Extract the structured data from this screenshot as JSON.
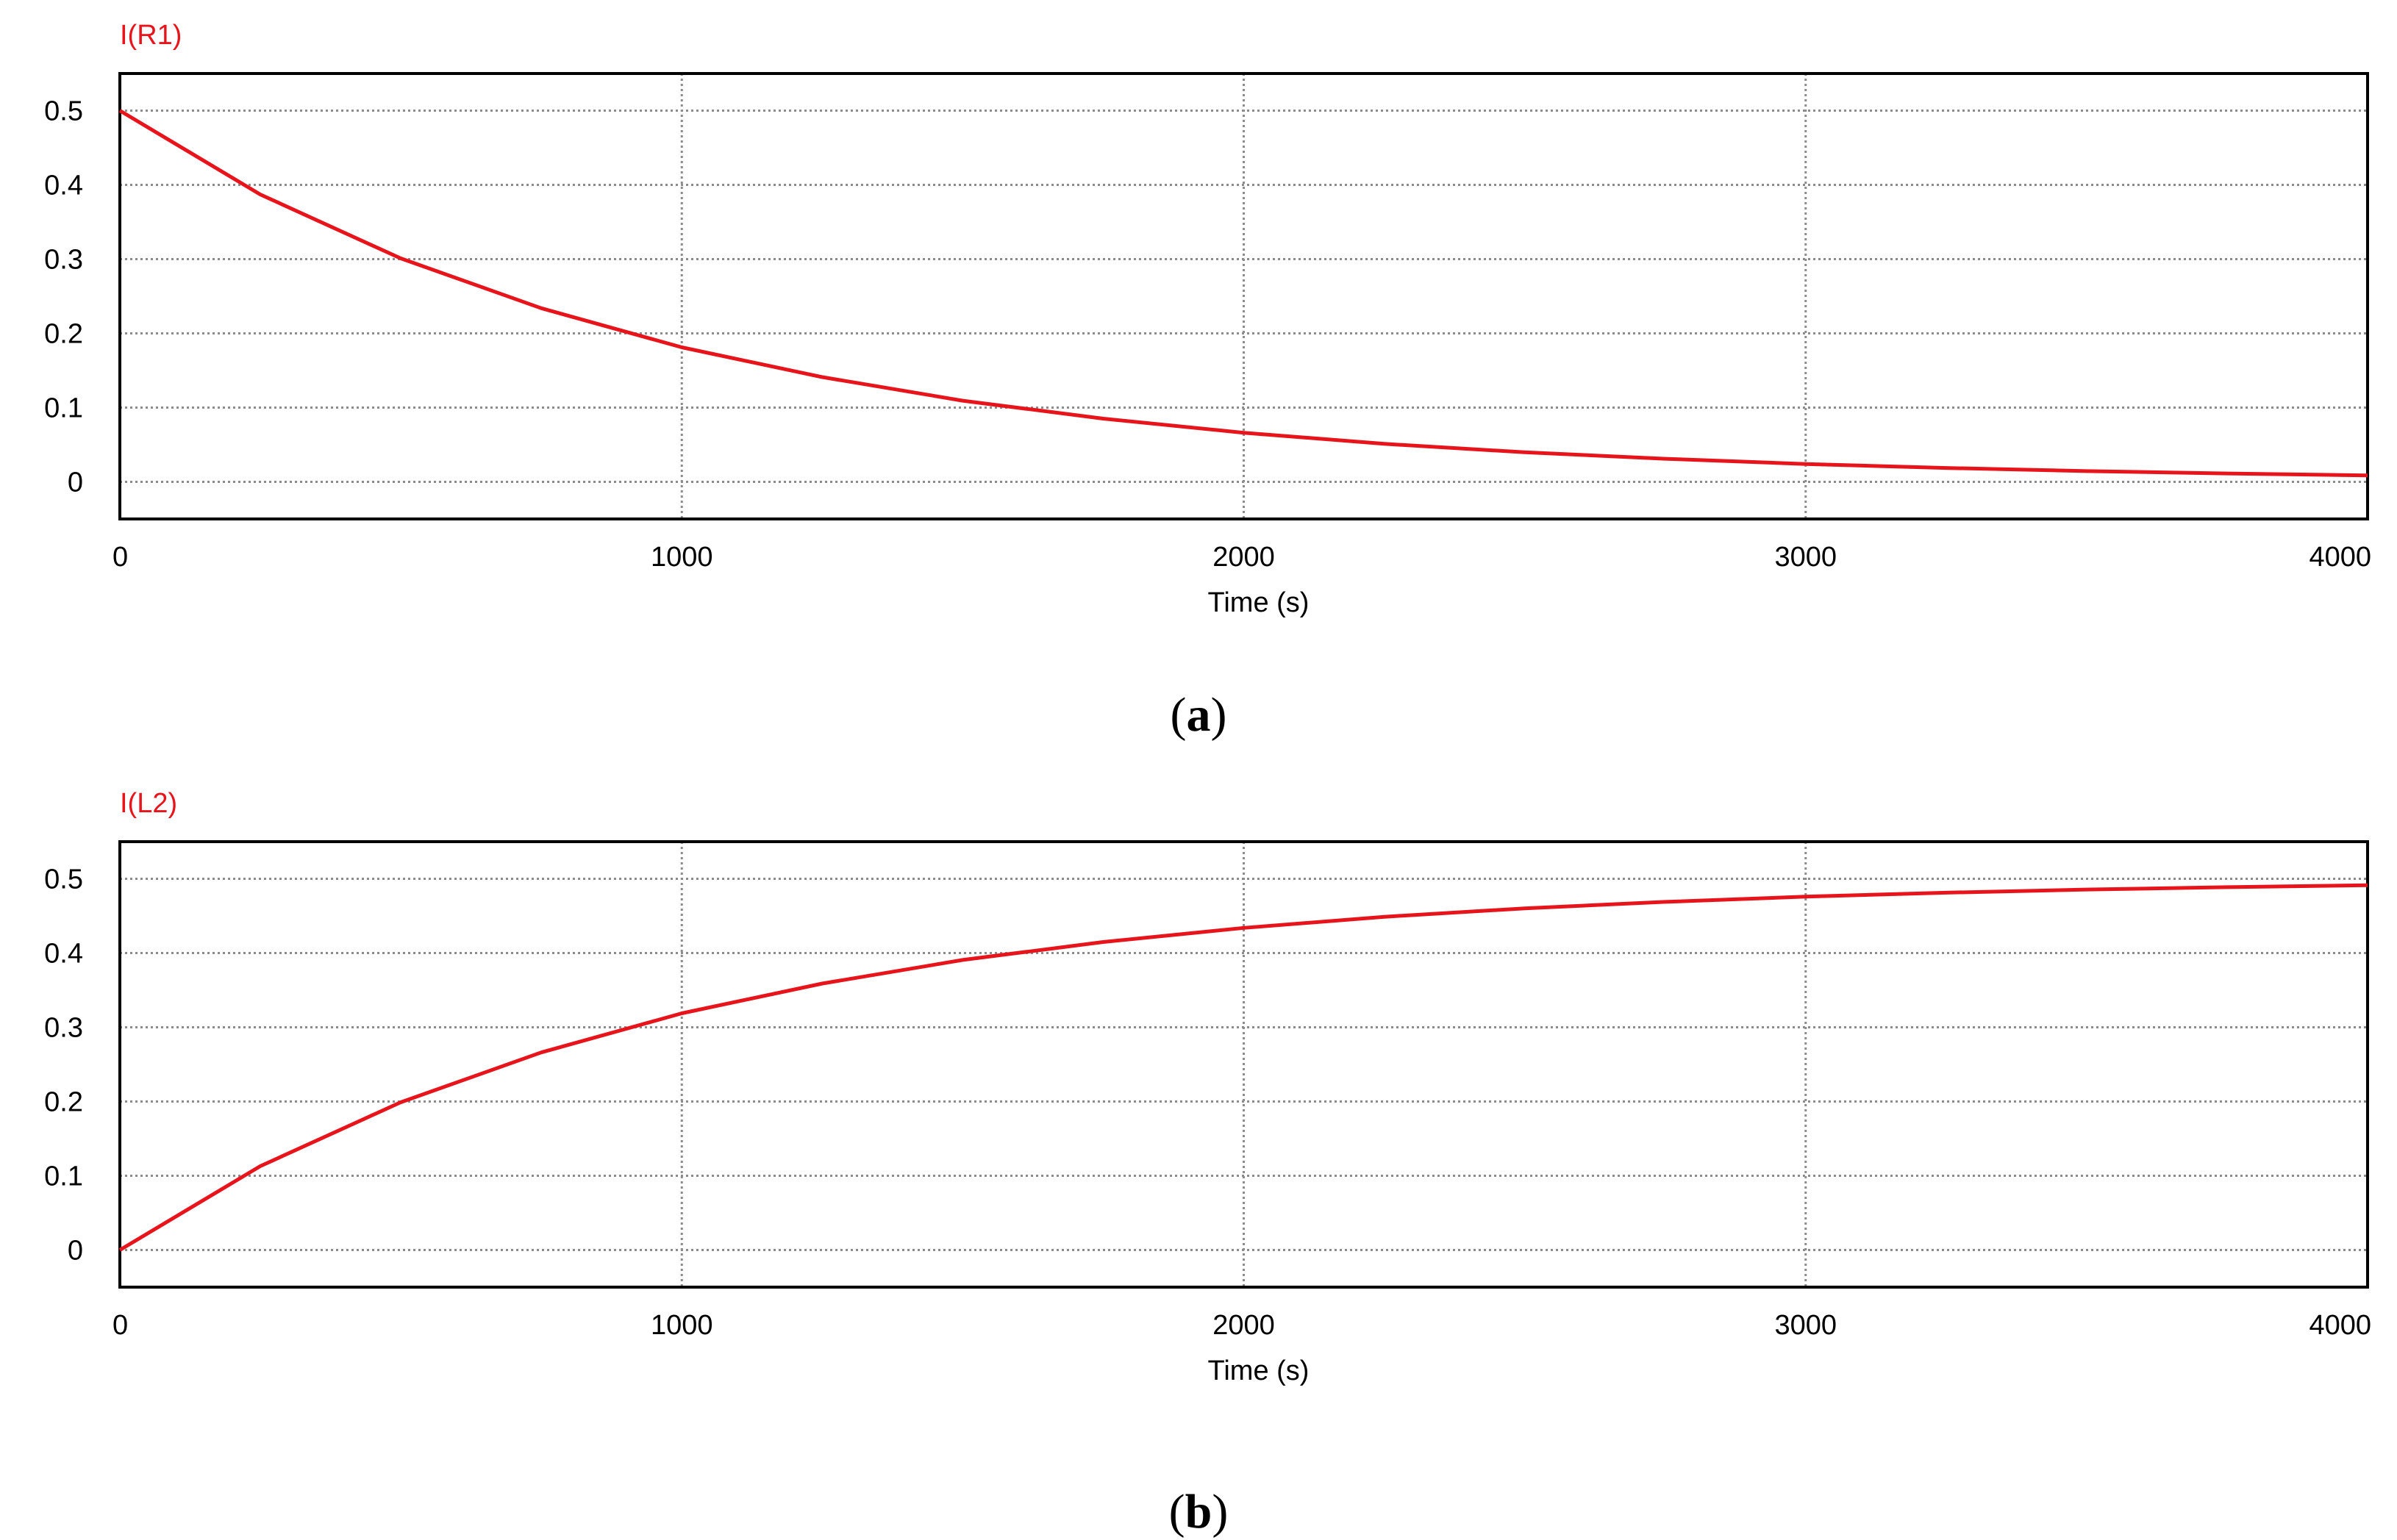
{
  "chart_data": [
    {
      "type": "line",
      "panel_label": "a",
      "series": [
        {
          "name": "I(R1)",
          "color": "#e8141c",
          "x": [
            0,
            250,
            500,
            750,
            1000,
            1250,
            1500,
            1750,
            2000,
            2250,
            2500,
            2750,
            3000,
            3250,
            3500,
            3750,
            4000
          ],
          "y": [
            0.5,
            0.387,
            0.301,
            0.2339,
            0.1812,
            0.1411,
            0.1093,
            0.0851,
            0.0661,
            0.0512,
            0.0398,
            0.0311,
            0.0241,
            0.0187,
            0.0145,
            0.0113,
            0.0087
          ]
        }
      ],
      "xlabel": "Time (s)",
      "xlim": [
        0,
        4000
      ],
      "ylim": [
        -0.05,
        0.55
      ],
      "xticks": [
        "0",
        "1000",
        "2000",
        "3000",
        "4000"
      ],
      "yticks": [
        "0",
        "0.1",
        "0.2",
        "0.3",
        "0.4",
        "0.5"
      ],
      "grid": true
    },
    {
      "type": "line",
      "panel_label": "b",
      "series": [
        {
          "name": "I(L2)",
          "color": "#e8141c",
          "x": [
            0,
            250,
            500,
            750,
            1000,
            1250,
            1500,
            1750,
            2000,
            2250,
            2500,
            2750,
            3000,
            3250,
            3500,
            3750,
            4000
          ],
          "y": [
            0,
            0.113,
            0.199,
            0.2661,
            0.3188,
            0.3589,
            0.3907,
            0.4149,
            0.4339,
            0.4488,
            0.4602,
            0.4689,
            0.4759,
            0.4813,
            0.4855,
            0.4887,
            0.4913
          ]
        }
      ],
      "xlabel": "Time (s)",
      "xlim": [
        0,
        4000
      ],
      "ylim": [
        -0.05,
        0.55
      ],
      "xticks": [
        "0",
        "1000",
        "2000",
        "3000",
        "4000"
      ],
      "yticks": [
        "0",
        "0.1",
        "0.2",
        "0.3",
        "0.4",
        "0.5"
      ],
      "grid": true
    }
  ]
}
